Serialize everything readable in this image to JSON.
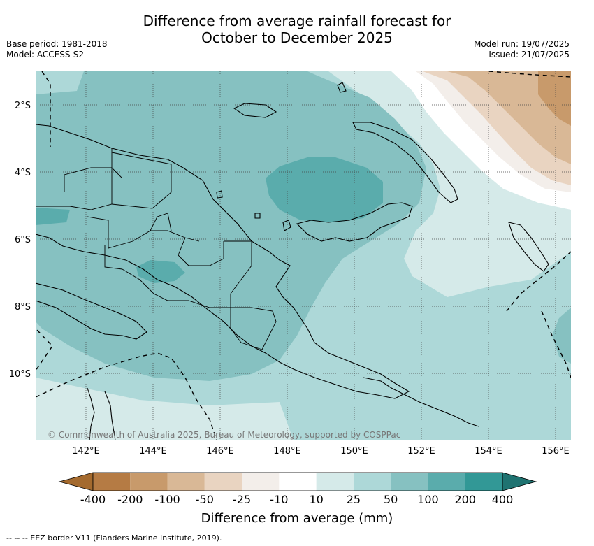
{
  "title": {
    "line1": "Difference from average rainfall forecast for",
    "line2": "October to December 2025"
  },
  "meta": {
    "base_period": "Base period: 1981-2018",
    "model": "Model: ACCESS-S2",
    "model_run": "Model run: 19/07/2025",
    "issued": "Issued: 21/07/2025"
  },
  "map": {
    "copyright": "© Commonwealth of Australia 2025, Bureau of Meteorology, supported by COSPPac",
    "lat_ticks": [
      "2°S",
      "4°S",
      "6°S",
      "8°S",
      "10°S"
    ],
    "lon_ticks": [
      "142°E",
      "144°E",
      "146°E",
      "148°E",
      "150°E",
      "152°E",
      "154°E",
      "156°E"
    ]
  },
  "colorbar": {
    "title": "Difference from average (mm)",
    "labels": [
      "-400",
      "-200",
      "-100",
      "-50",
      "-25",
      "-10",
      "10",
      "25",
      "50",
      "100",
      "200",
      "400"
    ],
    "colors": [
      "#a46a2e",
      "#b57b44",
      "#c89a6b",
      "#d9b896",
      "#e9d4c1",
      "#f3eeea",
      "#ffffff",
      "#d5eae9",
      "#add8d8",
      "#86c1c1",
      "#5aacac",
      "#329896",
      "#1f7371"
    ]
  },
  "footer": "--  --  -- EEZ border V11 (Flanders Marine Institute, 2019)."
}
